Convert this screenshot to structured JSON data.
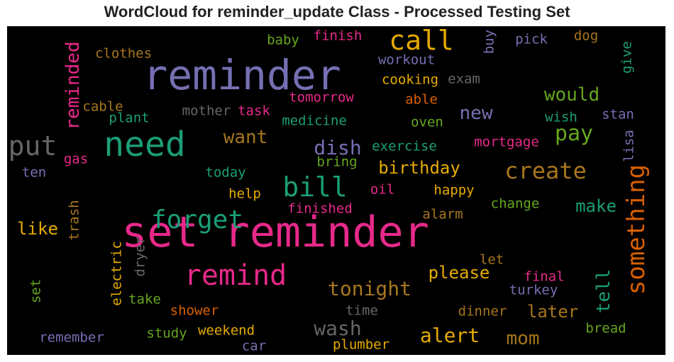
{
  "chart_data": {
    "type": "wordcloud",
    "title": "WordCloud for reminder_update Class - Processed Testing Set",
    "background": "#000000",
    "words": [
      {
        "text": "set reminder",
        "color": "#e7298a",
        "vertical": false
      },
      {
        "text": "reminder",
        "color": "#7570b3",
        "vertical": false
      },
      {
        "text": "need",
        "color": "#1b9e77",
        "vertical": false
      },
      {
        "text": "remind",
        "color": "#e7298a",
        "vertical": false
      },
      {
        "text": "call",
        "color": "#e6ab02",
        "vertical": false
      },
      {
        "text": "something",
        "color": "#d95f02",
        "vertical": true
      },
      {
        "text": "put",
        "color": "#666666",
        "vertical": false
      },
      {
        "text": "forget",
        "color": "#1b9e77",
        "vertical": false
      },
      {
        "text": "bill",
        "color": "#1b9e77",
        "vertical": false
      },
      {
        "text": "create",
        "color": "#a6761d",
        "vertical": false
      },
      {
        "text": "pay",
        "color": "#66a61e",
        "vertical": false
      },
      {
        "text": "tonight",
        "color": "#a6761d",
        "vertical": false
      },
      {
        "text": "alert",
        "color": "#e6ab02",
        "vertical": false
      },
      {
        "text": "mom",
        "color": "#a6761d",
        "vertical": false
      },
      {
        "text": "tell",
        "color": "#1b9e77",
        "vertical": true
      },
      {
        "text": "reminded",
        "color": "#e7298a",
        "vertical": true
      },
      {
        "text": "wash",
        "color": "#666666",
        "vertical": false
      },
      {
        "text": "dish",
        "color": "#7570b3",
        "vertical": false
      },
      {
        "text": "want",
        "color": "#a6761d",
        "vertical": false
      },
      {
        "text": "would",
        "color": "#66a61e",
        "vertical": false
      },
      {
        "text": "new",
        "color": "#7570b3",
        "vertical": false
      },
      {
        "text": "birthday",
        "color": "#e6ab02",
        "vertical": false
      },
      {
        "text": "make",
        "color": "#1b9e77",
        "vertical": false
      },
      {
        "text": "please",
        "color": "#e6ab02",
        "vertical": false
      },
      {
        "text": "later",
        "color": "#a6761d",
        "vertical": false
      },
      {
        "text": "like",
        "color": "#e6ab02",
        "vertical": false
      },
      {
        "text": "workout",
        "color": "#7570b3",
        "vertical": false
      },
      {
        "text": "cooking",
        "color": "#e6ab02",
        "vertical": false
      },
      {
        "text": "exam",
        "color": "#666666",
        "vertical": false
      },
      {
        "text": "finish",
        "color": "#e7298a",
        "vertical": false
      },
      {
        "text": "baby",
        "color": "#66a61e",
        "vertical": false
      },
      {
        "text": "clothes",
        "color": "#a6761d",
        "vertical": false
      },
      {
        "text": "buy",
        "color": "#7570b3",
        "vertical": true
      },
      {
        "text": "pick",
        "color": "#7570b3",
        "vertical": false
      },
      {
        "text": "dog",
        "color": "#a6761d",
        "vertical": false
      },
      {
        "text": "give",
        "color": "#1b9e77",
        "vertical": true
      },
      {
        "text": "tomorrow",
        "color": "#e7298a",
        "vertical": false
      },
      {
        "text": "able",
        "color": "#d95f02",
        "vertical": false
      },
      {
        "text": "cable",
        "color": "#a6761d",
        "vertical": false
      },
      {
        "text": "plant",
        "color": "#1b9e77",
        "vertical": false
      },
      {
        "text": "mother",
        "color": "#666666",
        "vertical": false
      },
      {
        "text": "task",
        "color": "#e7298a",
        "vertical": false
      },
      {
        "text": "medicine",
        "color": "#1b9e77",
        "vertical": false
      },
      {
        "text": "oven",
        "color": "#66a61e",
        "vertical": false
      },
      {
        "text": "wish",
        "color": "#1b9e77",
        "vertical": false
      },
      {
        "text": "stan",
        "color": "#7570b3",
        "vertical": false
      },
      {
        "text": "lisa",
        "color": "#7570b3",
        "vertical": true
      },
      {
        "text": "exercise",
        "color": "#1b9e77",
        "vertical": false
      },
      {
        "text": "mortgage",
        "color": "#e7298a",
        "vertical": false
      },
      {
        "text": "gas",
        "color": "#e7298a",
        "vertical": false
      },
      {
        "text": "ten",
        "color": "#7570b3",
        "vertical": false
      },
      {
        "text": "today",
        "color": "#1b9e77",
        "vertical": false
      },
      {
        "text": "bring",
        "color": "#66a61e",
        "vertical": false
      },
      {
        "text": "help",
        "color": "#e6ab02",
        "vertical": false
      },
      {
        "text": "oil",
        "color": "#e7298a",
        "vertical": false
      },
      {
        "text": "happy",
        "color": "#e6ab02",
        "vertical": false
      },
      {
        "text": "trash",
        "color": "#a6761d",
        "vertical": true
      },
      {
        "text": "finished",
        "color": "#e7298a",
        "vertical": false
      },
      {
        "text": "change",
        "color": "#66a61e",
        "vertical": false
      },
      {
        "text": "alarm",
        "color": "#a6761d",
        "vertical": false
      },
      {
        "text": "electric",
        "color": "#e6ab02",
        "vertical": true
      },
      {
        "text": "dryer",
        "color": "#666666",
        "vertical": true
      },
      {
        "text": "let",
        "color": "#a6761d",
        "vertical": false
      },
      {
        "text": "final",
        "color": "#e7298a",
        "vertical": false
      },
      {
        "text": "turkey",
        "color": "#7570b3",
        "vertical": false
      },
      {
        "text": "set",
        "color": "#66a61e",
        "vertical": true
      },
      {
        "text": "take",
        "color": "#66a61e",
        "vertical": false
      },
      {
        "text": "shower",
        "color": "#d95f02",
        "vertical": false
      },
      {
        "text": "time",
        "color": "#666666",
        "vertical": false
      },
      {
        "text": "dinner",
        "color": "#a6761d",
        "vertical": false
      },
      {
        "text": "bread",
        "color": "#66a61e",
        "vertical": false
      },
      {
        "text": "remember",
        "color": "#7570b3",
        "vertical": false
      },
      {
        "text": "study",
        "color": "#66a61e",
        "vertical": false
      },
      {
        "text": "weekend",
        "color": "#e6ab02",
        "vertical": false
      },
      {
        "text": "car",
        "color": "#7570b3",
        "vertical": false
      },
      {
        "text": "plumber",
        "color": "#e6ab02",
        "vertical": false
      }
    ]
  }
}
